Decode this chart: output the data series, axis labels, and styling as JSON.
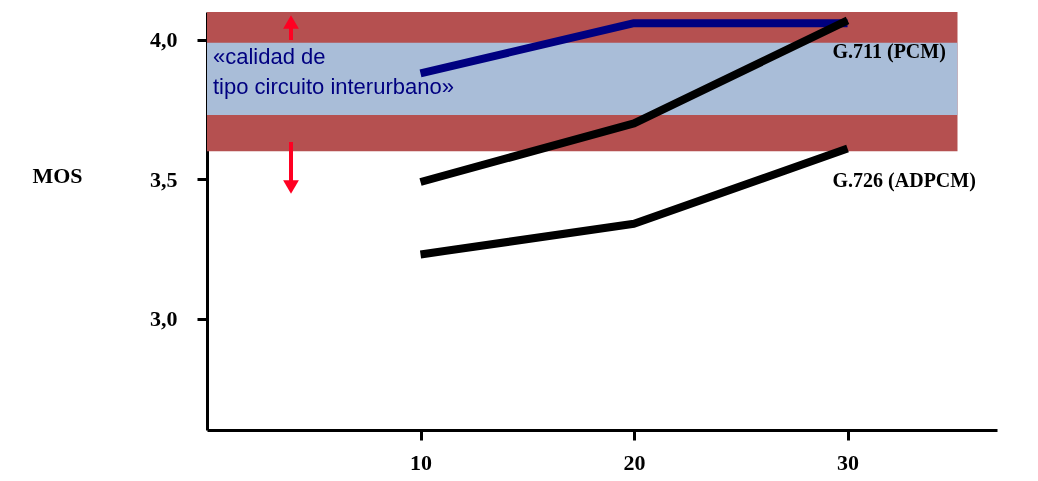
{
  "chart_data": {
    "type": "line",
    "ylabel": "MOS",
    "x": [
      10,
      20,
      30
    ],
    "xlim": [
      0,
      37
    ],
    "xticks": [
      10,
      20,
      30
    ],
    "ylim": [
      2.6,
      4.1
    ],
    "yticks": [
      {
        "value": 3.0,
        "label": "3,0"
      },
      {
        "value": 3.5,
        "label": "3,5"
      },
      {
        "value": 4.0,
        "label": "4,0"
      }
    ],
    "grid": false,
    "marker": "none",
    "line_style": "solid",
    "series": [
      {
        "color": "#000080",
        "values": [
          3.88,
          4.06,
          4.06
        ]
      },
      {
        "name": "G.711 (PCM)",
        "color": "#000000",
        "values": [
          3.49,
          3.7,
          4.07
        ]
      },
      {
        "name": "G.726 (ADPCM)",
        "color": "#000000",
        "values": [
          3.23,
          3.34,
          3.61
        ]
      }
    ],
    "bands": [
      {
        "axis": "y",
        "from": 3.6,
        "to": 4.1,
        "color": "#b55050"
      },
      {
        "axis": "y",
        "from": 3.73,
        "to": 3.99,
        "color": "#a9bdd8",
        "label": "«calidad de\ntipo circuito interurbano»"
      }
    ]
  }
}
